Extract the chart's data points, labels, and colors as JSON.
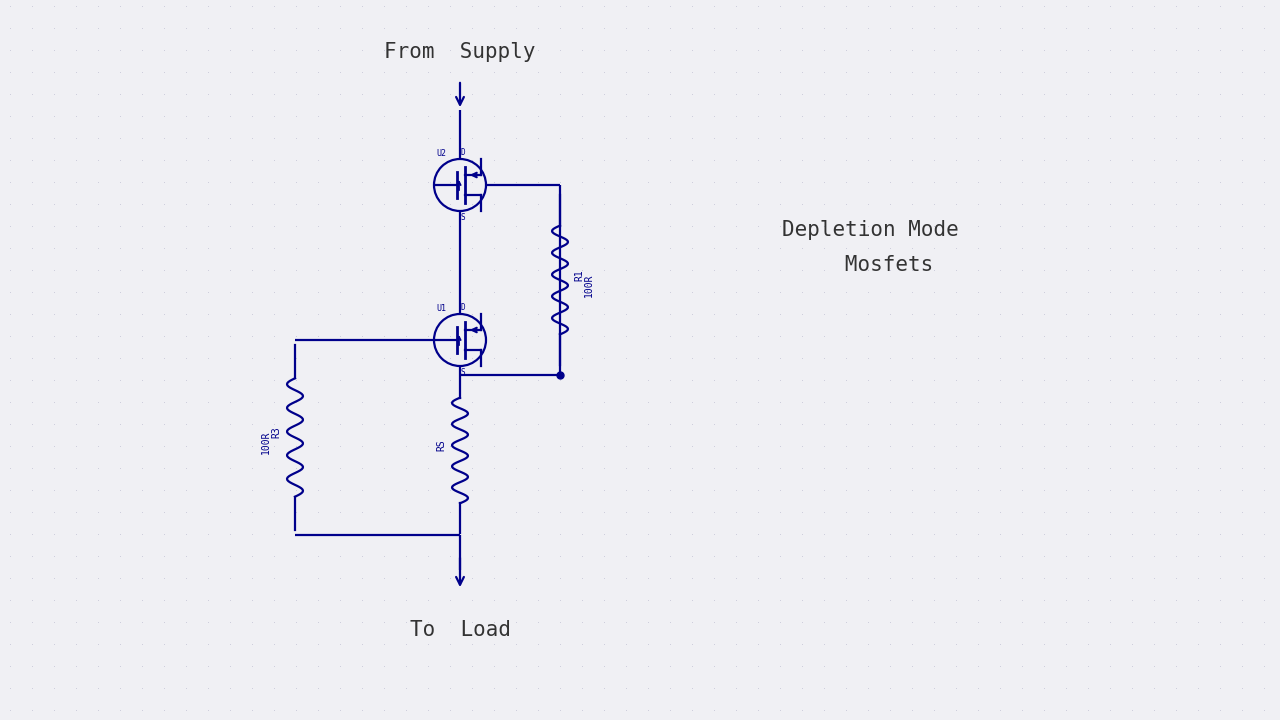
{
  "bg_color": "#f0f0f4",
  "dot_color": "#c8c8d8",
  "circuit_color": "#00008B",
  "text_color": "#333333",
  "fig_width": 12.8,
  "fig_height": 7.2,
  "title": "From  Supply",
  "bottom_label": "To  Load",
  "annotation_line1": "Depletion Mode",
  "annotation_line2": "   Mosfets",
  "label_fontsize": 15,
  "annotation_fontsize": 15
}
